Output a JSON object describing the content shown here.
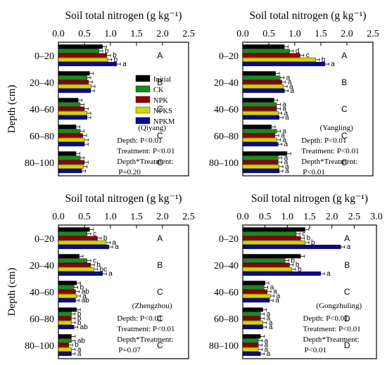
{
  "colors": {
    "Initial": "#000000",
    "CK": "#1a8a1a",
    "NPK": "#8b0000",
    "NPKS": "#d4d400",
    "NPKM": "#0a0a8c"
  },
  "legend": [
    "Initial",
    "CK",
    "NPK",
    "NPKS",
    "NPKM"
  ],
  "chart_data": [
    {
      "type": "bar",
      "orientation": "horizontal",
      "title": "Soil total nitrogen (g kg⁻¹)",
      "ylabel": "Depth (cm)",
      "site": "(Qiyang)",
      "xlim": [
        0,
        2.5
      ],
      "xticks": [
        "0.0",
        "0.5",
        "1.0",
        "1.5",
        "2.0",
        "2.5"
      ],
      "categories": [
        "0–20",
        "20–40",
        "40–60",
        "60–80",
        "80–100"
      ],
      "series": [
        {
          "name": "Initial",
          "values": [
            0.85,
            0.6,
            0.38,
            0.34,
            0.34
          ]
        },
        {
          "name": "CK",
          "values": [
            0.78,
            0.55,
            0.42,
            0.42,
            0.42
          ]
        },
        {
          "name": "NPK",
          "values": [
            0.93,
            0.58,
            0.5,
            0.47,
            0.5
          ]
        },
        {
          "name": "NPKS",
          "values": [
            0.95,
            0.63,
            0.55,
            0.5,
            0.48
          ]
        },
        {
          "name": "NPKM",
          "values": [
            1.12,
            0.62,
            0.55,
            0.5,
            0.45
          ]
        }
      ],
      "letters": [
        [
          "",
          "b",
          "b",
          "b",
          "a"
        ],
        [
          "",
          "",
          "",
          "",
          ""
        ],
        [
          "",
          "",
          "",
          "",
          ""
        ],
        [
          "",
          "",
          "",
          "",
          ""
        ],
        [
          "",
          "",
          "",
          "",
          ""
        ]
      ],
      "group_letters": [
        "A",
        "B",
        "C",
        "C",
        "C"
      ],
      "stats": [
        "Depth: P<0.01",
        "Treatment: P<0.01",
        "Depth*Treatment:",
        "P=0.20"
      ]
    },
    {
      "type": "bar",
      "orientation": "horizontal",
      "title": "Soil total nitrogen (g kg⁻¹)",
      "ylabel": "",
      "site": "(Yangling)",
      "xlim": [
        0,
        2.5
      ],
      "xticks": [
        "0.0",
        "0.5",
        "1.0",
        "1.5",
        "2.0",
        "2.5"
      ],
      "categories": [
        "0–20",
        "20–40",
        "40–60",
        "60–80",
        "80–100"
      ],
      "series": [
        {
          "name": "Initial",
          "values": [
            0.8,
            0.63,
            0.6,
            0.55,
            0.85
          ]
        },
        {
          "name": "CK",
          "values": [
            0.9,
            0.72,
            0.65,
            0.65,
            0.68
          ]
        },
        {
          "name": "NPK",
          "values": [
            1.1,
            0.75,
            0.65,
            0.62,
            0.68
          ]
        },
        {
          "name": "NPKS",
          "values": [
            1.4,
            0.78,
            0.68,
            0.65,
            0.7
          ]
        },
        {
          "name": "NPKM",
          "values": [
            1.58,
            0.8,
            0.7,
            0.68,
            0.7
          ]
        }
      ],
      "letters": [
        [
          "",
          "d",
          "c",
          "b",
          "a"
        ],
        [
          "",
          "a",
          "a",
          "a",
          "a"
        ],
        [
          "",
          "a",
          "a",
          "a",
          "a"
        ],
        [
          "",
          "a",
          "a",
          "a",
          "a"
        ],
        [
          "",
          "a",
          "a",
          "a",
          "a"
        ]
      ],
      "group_letters": [
        "A",
        "B",
        "C",
        "C",
        "C"
      ],
      "stats": [
        "Depth: P<0.01",
        "Treatment: P<0.01",
        "Depth*Treatment:",
        "P<0.01"
      ]
    },
    {
      "type": "bar",
      "orientation": "horizontal",
      "title": "Soil total nitrogen (g kg⁻¹)",
      "ylabel": "Depth (cm)",
      "site": "(Zhengzhou)",
      "xlim": [
        0,
        2.5
      ],
      "xticks": [
        "0.0",
        "0.5",
        "1.0",
        "1.5",
        "2.0",
        "2.5"
      ],
      "categories": [
        "0–20",
        "20–40",
        "40–60",
        "60–80",
        "80–100"
      ],
      "series": [
        {
          "name": "Initial",
          "values": [
            0.6,
            0.4,
            0.35,
            0.35,
            0.25
          ]
        },
        {
          "name": "CK",
          "values": [
            0.55,
            0.55,
            0.3,
            0.25,
            0.25
          ]
        },
        {
          "name": "NPK",
          "values": [
            0.75,
            0.62,
            0.33,
            0.25,
            0.2
          ]
        },
        {
          "name": "NPKS",
          "values": [
            0.92,
            0.68,
            0.35,
            0.25,
            0.25
          ]
        },
        {
          "name": "NPKM",
          "values": [
            0.97,
            0.85,
            0.33,
            0.3,
            0.25
          ]
        }
      ],
      "letters": [
        [
          "",
          "c",
          "b",
          "a",
          "a"
        ],
        [
          "",
          "c",
          "b",
          "bc",
          "a"
        ],
        [
          "",
          "b",
          "ab",
          "a",
          "ab"
        ],
        [
          "",
          "b",
          "b",
          "b",
          "ab"
        ],
        [
          "",
          "ab",
          "b",
          "a",
          "a"
        ]
      ],
      "group_letters": [
        "A",
        "B",
        "C",
        "C",
        "C"
      ],
      "stats": [
        "Depth: P<0.01",
        "Treatment: P<0.01",
        "Depth*Treatment:",
        "P=0.07"
      ]
    },
    {
      "type": "bar",
      "orientation": "horizontal",
      "title": "Soil total nitrogen (g kg⁻¹)",
      "ylabel": "",
      "site": "(Gongzhuling)",
      "xlim": [
        0,
        3.0
      ],
      "xticks": [
        "0.0",
        "0.5",
        "1.0",
        "1.5",
        "2.0",
        "2.5",
        "3.0"
      ],
      "categories": [
        "0–20",
        "20–40",
        "40–60",
        "60–80",
        "80–100"
      ],
      "series": [
        {
          "name": "Initial",
          "values": [
            1.4,
            1.3,
            0.5,
            0.45,
            0.4
          ]
        },
        {
          "name": "CK",
          "values": [
            1.2,
            0.95,
            0.48,
            0.4,
            0.35
          ]
        },
        {
          "name": "NPK",
          "values": [
            1.3,
            1.05,
            0.55,
            0.4,
            0.35
          ]
        },
        {
          "name": "NPKS",
          "values": [
            1.4,
            1.1,
            0.62,
            0.45,
            0.35
          ]
        },
        {
          "name": "NPKM",
          "values": [
            2.2,
            1.75,
            0.6,
            0.45,
            0.4
          ]
        }
      ],
      "letters": [
        [
          "",
          "c",
          "b",
          "b",
          "a"
        ],
        [
          "",
          "b",
          "b",
          "b",
          "a"
        ],
        [
          "",
          "a",
          "a",
          "a",
          "a"
        ],
        [
          "",
          "a",
          "a",
          "a",
          "a"
        ],
        [
          "",
          "a",
          "a",
          "a",
          "a"
        ]
      ],
      "group_letters": [
        "A",
        "B",
        "C",
        "D",
        "D"
      ],
      "stats": [
        "Depth: P<0.01",
        "Treatment: P<0.01",
        "Depth*Treatment:",
        "P<0.01"
      ]
    }
  ]
}
